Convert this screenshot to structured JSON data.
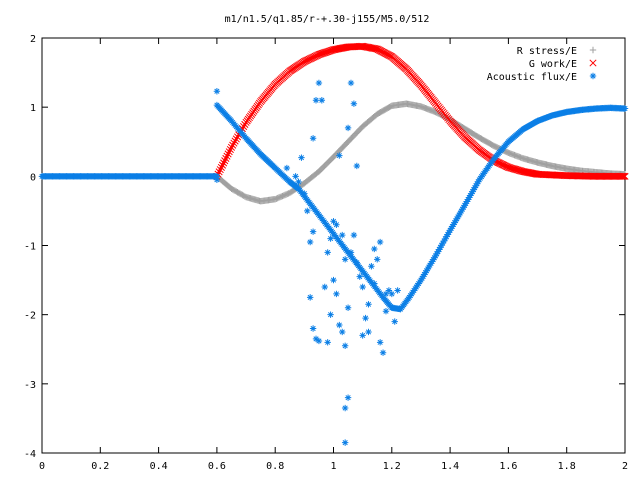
{
  "chart_data": {
    "type": "scatter",
    "title": "m1/n1.5/q1.85/r-+.30-j155/M5.0/512",
    "xlabel": "",
    "ylabel": "",
    "xlim": [
      0,
      2
    ],
    "ylim": [
      -4,
      2
    ],
    "xticks": [
      "0",
      "0.2",
      "0.4",
      "0.6",
      "0.8",
      "1",
      "1.2",
      "1.4",
      "1.6",
      "1.8",
      "2"
    ],
    "yticks": [
      "-4",
      "-3",
      "-2",
      "-1",
      "0",
      "1",
      "2"
    ],
    "legend_position": "top-right",
    "series": [
      {
        "name": "R stress/E",
        "marker": "+",
        "color": "#a0a0a0",
        "curve": [
          [
            0.6,
            0.0
          ],
          [
            0.65,
            -0.18
          ],
          [
            0.7,
            -0.3
          ],
          [
            0.75,
            -0.36
          ],
          [
            0.8,
            -0.33
          ],
          [
            0.85,
            -0.24
          ],
          [
            0.9,
            -0.1
          ],
          [
            0.95,
            0.07
          ],
          [
            1.0,
            0.28
          ],
          [
            1.05,
            0.5
          ],
          [
            1.1,
            0.72
          ],
          [
            1.15,
            0.9
          ],
          [
            1.2,
            1.02
          ],
          [
            1.25,
            1.05
          ],
          [
            1.3,
            1.01
          ],
          [
            1.35,
            0.93
          ],
          [
            1.4,
            0.82
          ],
          [
            1.45,
            0.69
          ],
          [
            1.5,
            0.56
          ],
          [
            1.55,
            0.44
          ],
          [
            1.6,
            0.34
          ],
          [
            1.65,
            0.26
          ],
          [
            1.7,
            0.2
          ],
          [
            1.75,
            0.15
          ],
          [
            1.8,
            0.11
          ],
          [
            1.85,
            0.08
          ],
          [
            1.9,
            0.06
          ],
          [
            1.95,
            0.04
          ],
          [
            2.0,
            0.03
          ]
        ],
        "points": [
          [
            0.0,
            0.0
          ]
        ]
      },
      {
        "name": "G work/E",
        "marker": "x",
        "color": "#ff0000",
        "curve": [
          [
            0.6,
            0.0
          ],
          [
            0.65,
            0.42
          ],
          [
            0.7,
            0.78
          ],
          [
            0.75,
            1.08
          ],
          [
            0.8,
            1.33
          ],
          [
            0.85,
            1.52
          ],
          [
            0.9,
            1.66
          ],
          [
            0.95,
            1.76
          ],
          [
            1.0,
            1.83
          ],
          [
            1.05,
            1.87
          ],
          [
            1.1,
            1.88
          ],
          [
            1.15,
            1.84
          ],
          [
            1.2,
            1.73
          ],
          [
            1.25,
            1.55
          ],
          [
            1.3,
            1.32
          ],
          [
            1.35,
            1.06
          ],
          [
            1.4,
            0.8
          ],
          [
            1.45,
            0.57
          ],
          [
            1.5,
            0.38
          ],
          [
            1.55,
            0.23
          ],
          [
            1.6,
            0.13
          ],
          [
            1.65,
            0.07
          ],
          [
            1.7,
            0.03
          ],
          [
            1.8,
            0.01
          ],
          [
            1.9,
            0.0
          ],
          [
            2.0,
            0.0
          ]
        ],
        "points": []
      },
      {
        "name": "Acoustic flux/E",
        "marker": "*",
        "color": "#0b7fe6",
        "curve": [
          [
            0.0,
            0.0
          ],
          [
            0.3,
            0.0
          ],
          [
            0.6,
            0.0
          ]
        ],
        "curve2": [
          [
            0.6,
            1.03
          ],
          [
            0.65,
            0.8
          ],
          [
            0.7,
            0.55
          ],
          [
            0.75,
            0.32
          ],
          [
            0.8,
            0.12
          ],
          [
            0.85,
            -0.08
          ],
          [
            0.88,
            -0.18
          ],
          [
            1.17,
            -1.75
          ],
          [
            1.2,
            -1.9
          ],
          [
            1.23,
            -1.92
          ],
          [
            1.26,
            -1.75
          ],
          [
            1.3,
            -1.5
          ],
          [
            1.35,
            -1.15
          ],
          [
            1.4,
            -0.78
          ],
          [
            1.45,
            -0.42
          ],
          [
            1.5,
            -0.05
          ],
          [
            1.55,
            0.25
          ],
          [
            1.6,
            0.5
          ],
          [
            1.65,
            0.68
          ],
          [
            1.7,
            0.8
          ],
          [
            1.75,
            0.88
          ],
          [
            1.8,
            0.93
          ],
          [
            1.85,
            0.96
          ],
          [
            1.9,
            0.98
          ],
          [
            1.95,
            0.99
          ],
          [
            2.0,
            0.98
          ]
        ],
        "points": [
          [
            0.6,
            1.23
          ],
          [
            0.6,
            -0.05
          ],
          [
            0.84,
            0.12
          ],
          [
            0.87,
            0.0
          ],
          [
            0.88,
            -0.08
          ],
          [
            0.89,
            0.27
          ],
          [
            0.9,
            -0.25
          ],
          [
            0.91,
            -0.5
          ],
          [
            0.92,
            -0.95
          ],
          [
            0.93,
            -0.8
          ],
          [
            0.93,
            0.55
          ],
          [
            0.94,
            1.1
          ],
          [
            0.95,
            1.35
          ],
          [
            0.96,
            1.1
          ],
          [
            0.92,
            -1.75
          ],
          [
            0.93,
            -2.2
          ],
          [
            0.94,
            -2.35
          ],
          [
            0.95,
            -2.38
          ],
          [
            0.97,
            -1.6
          ],
          [
            0.98,
            -1.1
          ],
          [
            0.99,
            -0.9
          ],
          [
            1.0,
            -0.65
          ],
          [
            1.01,
            -0.7
          ],
          [
            1.02,
            0.3
          ],
          [
            1.03,
            -0.85
          ],
          [
            1.04,
            -1.2
          ],
          [
            1.05,
            0.7
          ],
          [
            1.06,
            1.35
          ],
          [
            1.07,
            1.05
          ],
          [
            1.08,
            0.15
          ],
          [
            0.98,
            -2.4
          ],
          [
            0.99,
            -2.0
          ],
          [
            1.0,
            -1.5
          ],
          [
            1.01,
            -1.7
          ],
          [
            1.02,
            -2.15
          ],
          [
            1.03,
            -2.25
          ],
          [
            1.04,
            -2.45
          ],
          [
            1.05,
            -1.9
          ],
          [
            1.06,
            -1.1
          ],
          [
            1.07,
            -0.85
          ],
          [
            1.08,
            -1.25
          ],
          [
            1.09,
            -1.45
          ],
          [
            1.1,
            -1.6
          ],
          [
            1.11,
            -2.05
          ],
          [
            1.12,
            -2.25
          ],
          [
            1.13,
            -1.3
          ],
          [
            1.14,
            -1.05
          ],
          [
            1.15,
            -1.2
          ],
          [
            1.16,
            -2.4
          ],
          [
            1.17,
            -2.55
          ],
          [
            1.18,
            -1.95
          ],
          [
            1.19,
            -1.65
          ],
          [
            1.2,
            -1.7
          ],
          [
            1.21,
            -2.1
          ],
          [
            1.22,
            -1.65
          ],
          [
            1.05,
            -3.2
          ],
          [
            1.04,
            -3.35
          ],
          [
            1.04,
            -3.85
          ],
          [
            1.1,
            -2.3
          ],
          [
            1.12,
            -1.85
          ],
          [
            1.14,
            -1.55
          ],
          [
            1.16,
            -0.95
          ],
          [
            1.18,
            -1.7
          ]
        ]
      }
    ]
  }
}
